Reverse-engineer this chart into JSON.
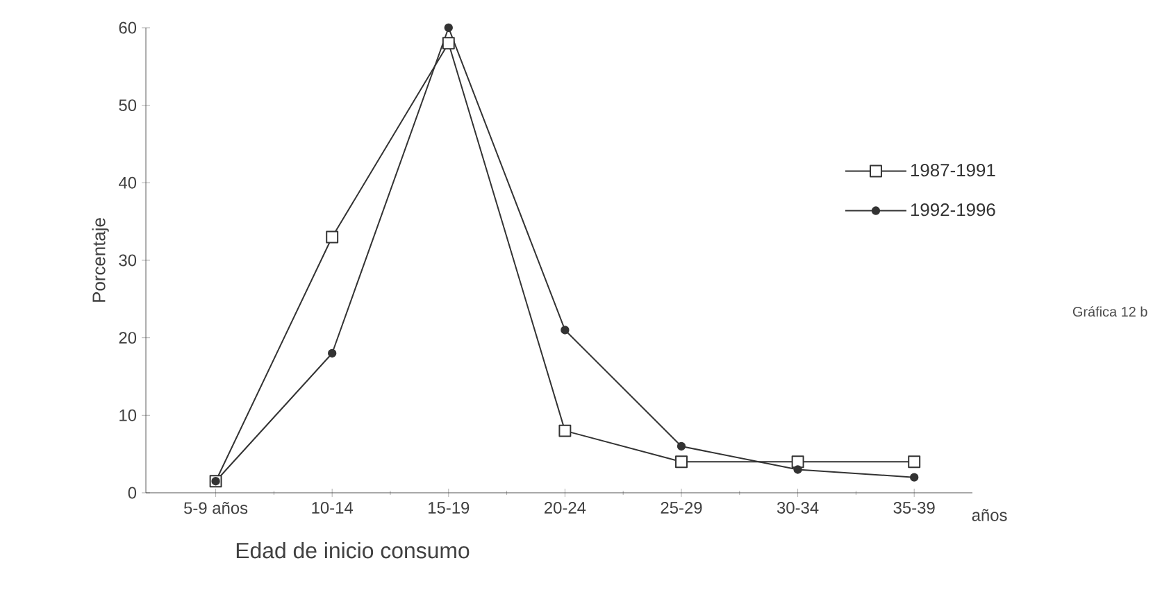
{
  "chart_data": {
    "type": "line",
    "xlabel": "Edad de inicio consumo",
    "ylabel": "Porcentaje",
    "categories": [
      "5-9 años",
      "10-14",
      "15-19",
      "20-24",
      "25-29",
      "30-34",
      "35-39"
    ],
    "series": [
      {
        "name": "1987-1991",
        "color": "#333333",
        "marker": "square",
        "values": [
          1.5,
          33,
          58,
          8,
          4,
          4,
          4
        ]
      },
      {
        "name": "1992-1996",
        "color": "#333333",
        "marker": "circle",
        "values": [
          1.5,
          18,
          60,
          21,
          6,
          3,
          2
        ]
      }
    ],
    "ylim": [
      0,
      60
    ],
    "yticks": [
      0,
      10,
      20,
      30,
      40,
      50,
      60
    ],
    "legend": "top right",
    "grid": false,
    "line_style": "solid",
    "annotations": [
      "años",
      "Gráfica 12 b"
    ]
  }
}
